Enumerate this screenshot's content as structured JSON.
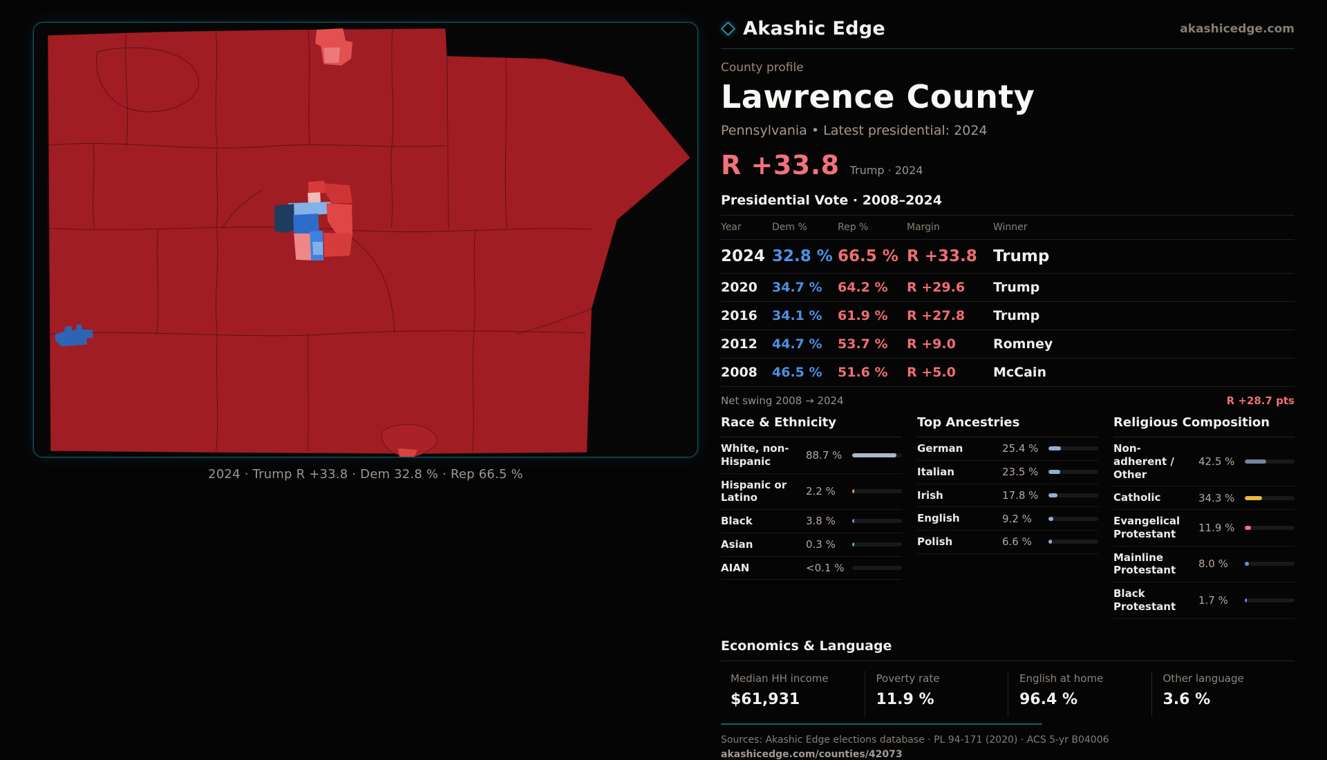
{
  "theme": {
    "page_bg": "#050506",
    "teal_border": "#17525d",
    "map_red": "#a01d23",
    "dem_blue": "#4e90e4",
    "rep_red": "#ef6e74",
    "headline_red": "#f2727c"
  },
  "brand": {
    "name": "Akashic Edge",
    "site": "akashicedge.com"
  },
  "map": {
    "caption": "2024 · Trump R +33.8 · Dem 32.8 % · Rep 66.5 %"
  },
  "profile": {
    "eyebrow": "County profile",
    "title": "Lawrence County",
    "subtitle": "Pennsylvania • Latest presidential: 2024",
    "headline_margin": "R +33.8",
    "headline_note": "Trump · 2024"
  },
  "vote_table": {
    "title": "Presidential Vote · 2008–2024",
    "columns": [
      "Year",
      "Dem %",
      "Rep %",
      "Margin",
      "Winner"
    ],
    "rows": [
      {
        "year": "2024",
        "dem": "32.8 %",
        "rep": "66.5 %",
        "margin": "R +33.8",
        "winner": "Trump"
      },
      {
        "year": "2020",
        "dem": "34.7 %",
        "rep": "64.2 %",
        "margin": "R +29.6",
        "winner": "Trump"
      },
      {
        "year": "2016",
        "dem": "34.1 %",
        "rep": "61.9 %",
        "margin": "R +27.8",
        "winner": "Trump"
      },
      {
        "year": "2012",
        "dem": "44.7 %",
        "rep": "53.7 %",
        "margin": "R +9.0",
        "winner": "Romney"
      },
      {
        "year": "2008",
        "dem": "46.5 %",
        "rep": "51.6 %",
        "margin": "R +5.0",
        "winner": "McCain"
      }
    ],
    "net_swing_label": "Net swing 2008 → 2024",
    "net_swing_value": "R +28.7 pts"
  },
  "race": {
    "title": "Race & Ethnicity",
    "rows": [
      {
        "label": "White, non-Hispanic",
        "value": "88.7 %",
        "pct": 88.7,
        "color": "#a9b9c9"
      },
      {
        "label": "Hispanic or Latino",
        "value": "2.2 %",
        "pct": 2.2,
        "color": "#e8a23c"
      },
      {
        "label": "Black",
        "value": "3.8 %",
        "pct": 3.8,
        "color": "#9b7fe0"
      },
      {
        "label": "Asian",
        "value": "0.3 %",
        "pct": 0.3,
        "color": "#35c4a2"
      },
      {
        "label": "AIAN",
        "value": "<0.1 %",
        "pct": 0,
        "color": "#a9b9c9"
      }
    ]
  },
  "ancestries": {
    "title": "Top Ancestries",
    "rows": [
      {
        "label": "German",
        "value": "25.4 %",
        "pct": 25.4,
        "color": "#93aecb"
      },
      {
        "label": "Italian",
        "value": "23.5 %",
        "pct": 23.5,
        "color": "#93aecb"
      },
      {
        "label": "Irish",
        "value": "17.8 %",
        "pct": 17.8,
        "color": "#93aecb"
      },
      {
        "label": "English",
        "value": "9.2 %",
        "pct": 9.2,
        "color": "#93aecb"
      },
      {
        "label": "Polish",
        "value": "6.6 %",
        "pct": 6.6,
        "color": "#93aecb"
      }
    ]
  },
  "religion": {
    "title": "Religious Composition",
    "rows": [
      {
        "label": "Non-adherent / Other",
        "value": "42.5 %",
        "pct": 42.5,
        "color": "#76839b"
      },
      {
        "label": "Catholic",
        "value": "34.3 %",
        "pct": 34.3,
        "color": "#e7b93c"
      },
      {
        "label": "Evangelical Protestant",
        "value": "11.9 %",
        "pct": 11.9,
        "color": "#e77a76"
      },
      {
        "label": "Mainline Protestant",
        "value": "8.0 %",
        "pct": 8.0,
        "color": "#4f93e8"
      },
      {
        "label": "Black Protestant",
        "value": "1.7 %",
        "pct": 1.7,
        "color": "#6f86e8"
      }
    ]
  },
  "economics": {
    "title": "Economics & Language",
    "stats": [
      {
        "label": "Median HH income",
        "value": "$61,931"
      },
      {
        "label": "Poverty rate",
        "value": "11.9 %"
      },
      {
        "label": "English at home",
        "value": "96.4 %"
      },
      {
        "label": "Other language",
        "value": "3.6 %"
      }
    ]
  },
  "footer": {
    "sources": "Sources: Akashic Edge elections database · PL 94-171 (2020) · ACS 5-yr B04006",
    "permalink": "akashicedge.com/counties/42073"
  }
}
